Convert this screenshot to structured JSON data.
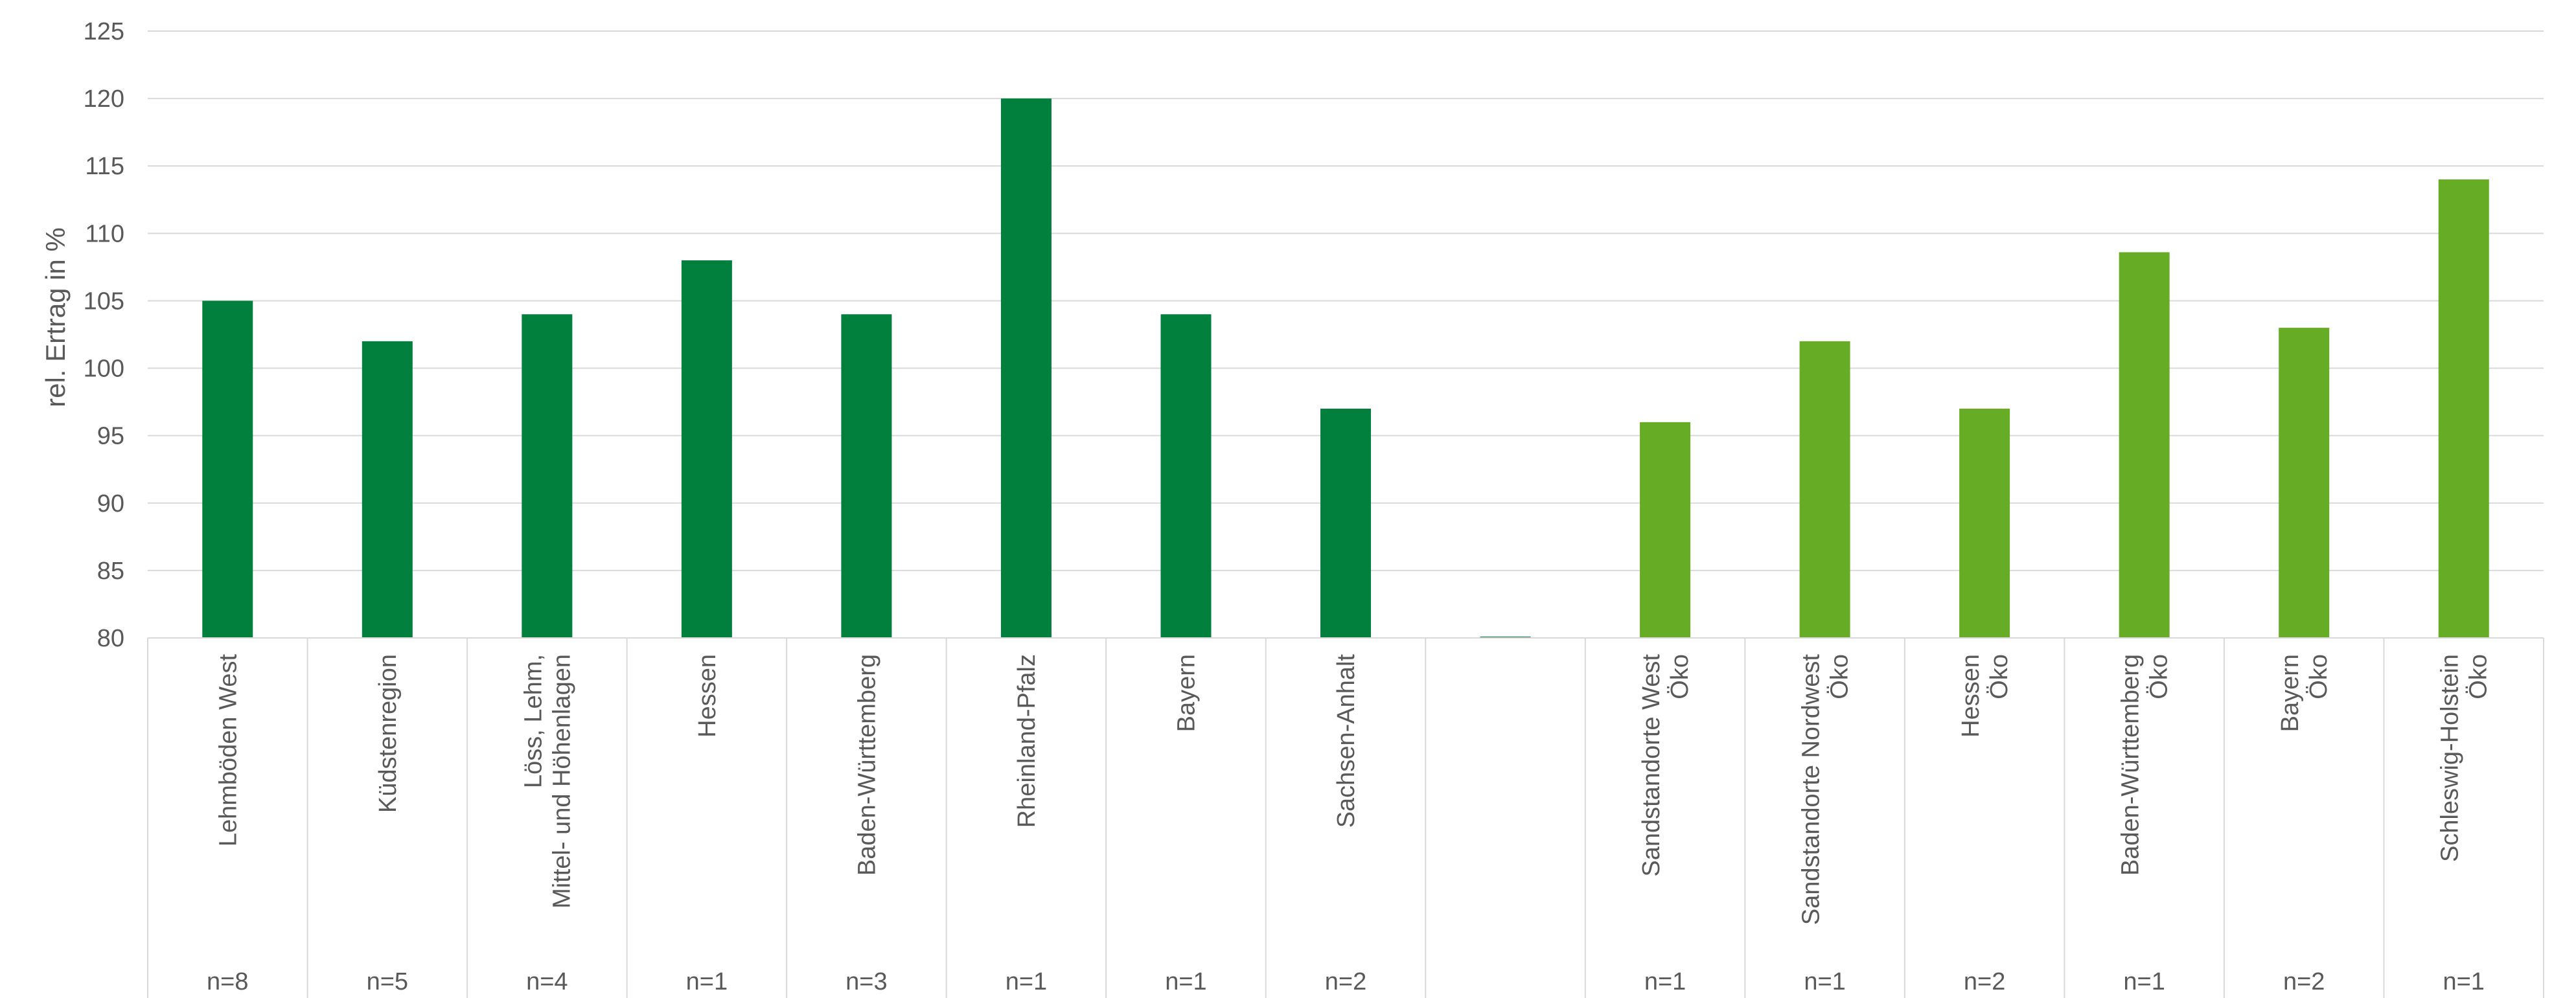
{
  "chart_data": {
    "type": "bar",
    "ylabel": "rel. Ertrag in %",
    "ylim": [
      80,
      125
    ],
    "yticks": [
      80,
      85,
      90,
      95,
      100,
      105,
      110,
      115,
      120,
      125
    ],
    "grid": true,
    "legend": "none",
    "colors": {
      "conventional": "#007f3d",
      "organic": "#66ad25",
      "axis": "#d9d9d9",
      "text": "#595959"
    },
    "categories": [
      {
        "label": [
          "Lehmböden West"
        ],
        "n": "n=8",
        "value": 105,
        "group": "conventional"
      },
      {
        "label": [
          "Küdstenregion"
        ],
        "n": "n=5",
        "value": 102,
        "group": "conventional"
      },
      {
        "label": [
          "Löss, Lehm,",
          "Mittel- und Höhenlagen"
        ],
        "n": "n=4",
        "value": 104,
        "group": "conventional"
      },
      {
        "label": [
          "Hessen"
        ],
        "n": "n=1",
        "value": 108,
        "group": "conventional"
      },
      {
        "label": [
          "Baden-Württemberg"
        ],
        "n": "n=3",
        "value": 104,
        "group": "conventional"
      },
      {
        "label": [
          "Rheinland-Pfalz"
        ],
        "n": "n=1",
        "value": 120,
        "group": "conventional"
      },
      {
        "label": [
          "Bayern"
        ],
        "n": "n=1",
        "value": 104,
        "group": "conventional"
      },
      {
        "label": [
          "Sachsen-Anhalt"
        ],
        "n": "n=2",
        "value": 97,
        "group": "conventional"
      },
      {
        "label": [
          ""
        ],
        "n": "",
        "value": 80,
        "group": "conventional"
      },
      {
        "label": [
          "Sandstandorte West",
          "Öko"
        ],
        "n": "n=1",
        "value": 96,
        "group": "organic"
      },
      {
        "label": [
          "Sandstandorte Nordwest",
          "Öko"
        ],
        "n": "n=1",
        "value": 102,
        "group": "organic"
      },
      {
        "label": [
          "Hessen",
          "Öko"
        ],
        "n": "n=2",
        "value": 97,
        "group": "organic"
      },
      {
        "label": [
          "Baden-Württemberg",
          "Öko"
        ],
        "n": "n=1",
        "value": 108.6,
        "group": "organic"
      },
      {
        "label": [
          "Bayern",
          "Öko"
        ],
        "n": "n=2",
        "value": 103,
        "group": "organic"
      },
      {
        "label": [
          "Schleswig-Holstein",
          "Öko"
        ],
        "n": "n=1",
        "value": 114,
        "group": "organic"
      }
    ]
  }
}
